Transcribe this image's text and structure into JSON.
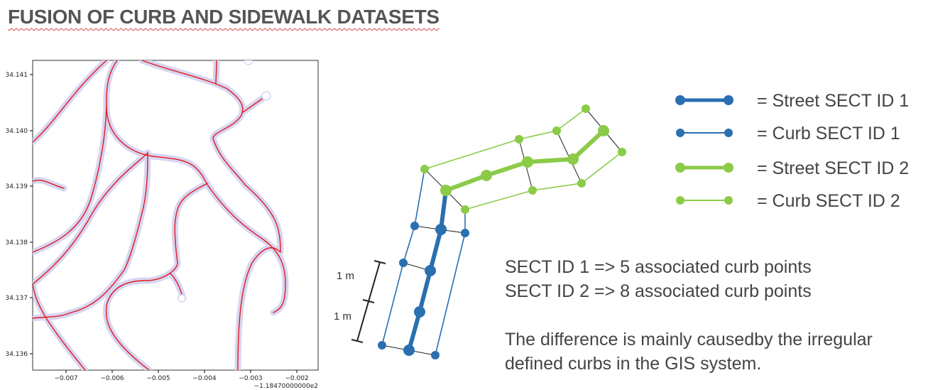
{
  "title": "FUSION OF CURB AND SIDEWALK DATASETS",
  "map_plot": {
    "type": "line",
    "x_ticks": [
      "−0.007",
      "−0.006",
      "−0.005",
      "−0.004",
      "−0.003",
      "−0.002"
    ],
    "x_offset_label": "−1.18470000000e2",
    "y_ticks": [
      "34.141",
      "34.140",
      "34.139",
      "34.138",
      "34.137",
      "34.136"
    ],
    "line_color": "#e41a1c",
    "buffer_color": "#c8c8ee"
  },
  "legend": [
    {
      "label": "= Street SECT ID 1",
      "color": "#2a6fb0"
    },
    {
      "label": "= Curb SECT ID 1",
      "color": "#2a6fb0"
    },
    {
      "label": "= Street SECT ID 2",
      "color": "#8bcb48"
    },
    {
      "label": "= Curb SECT ID 2",
      "color": "#8bcb48"
    }
  ],
  "scale_labels": [
    "1 m",
    "1 m"
  ],
  "notes": {
    "line1": "SECT ID 1 => 5 associated curb points",
    "line2": "SECT ID 2 => 8 associated curb points",
    "line3": "The difference is mainly causedby the irregular",
    "line4": "defined curbs in the GIS system."
  }
}
